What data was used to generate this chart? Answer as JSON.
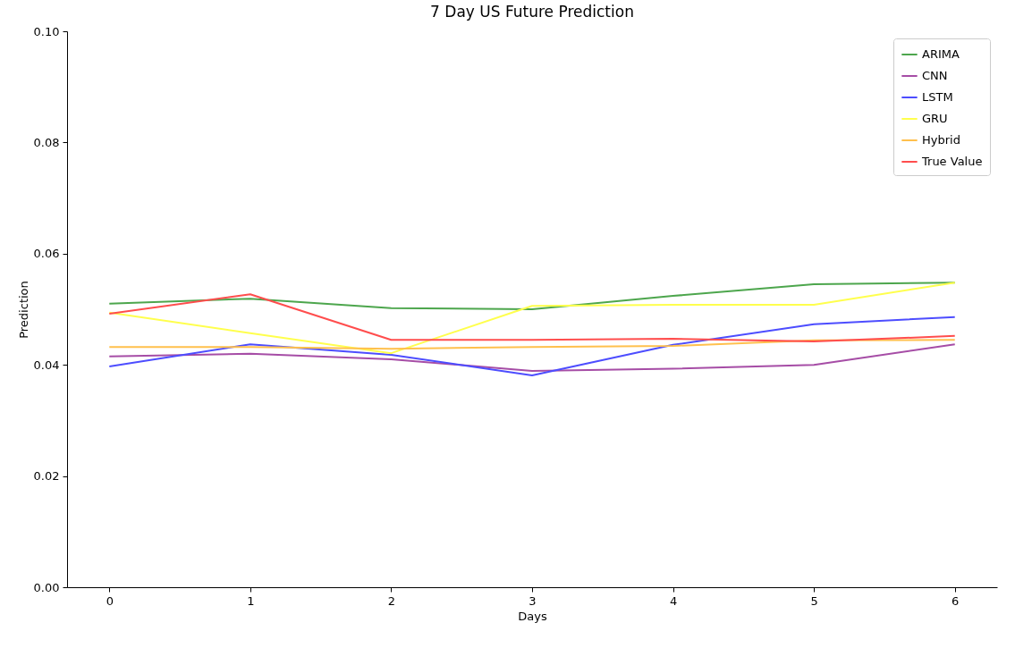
{
  "chart_data": {
    "type": "line",
    "title": "7 Day US Future Prediction",
    "xlabel": "Days",
    "ylabel": "Prediction",
    "x": [
      0,
      1,
      2,
      3,
      4,
      5,
      6
    ],
    "xlim": [
      -0.3,
      6.3
    ],
    "xticks": [
      0,
      1,
      2,
      3,
      4,
      5,
      6
    ],
    "ylim": [
      0,
      0.1
    ],
    "yticks": [
      {
        "value": 0,
        "label": "0.00"
      },
      {
        "value": 0.02,
        "label": "0.02"
      },
      {
        "value": 0.04,
        "label": "0.04"
      },
      {
        "value": 0.06,
        "label": "0.06"
      },
      {
        "value": 0.08,
        "label": "0.08"
      },
      {
        "value": 0.1,
        "label": "0.10"
      }
    ],
    "grid": false,
    "legend": "top right",
    "marker": "none",
    "series": [
      {
        "name": "ARIMA",
        "color": "#4da64d",
        "values": [
          0.051,
          0.0519,
          0.0502,
          0.05,
          0.0524,
          0.0545,
          0.0548
        ]
      },
      {
        "name": "CNN",
        "color": "#a64da6",
        "values": [
          0.0415,
          0.042,
          0.041,
          0.0389,
          0.0393,
          0.04,
          0.0437
        ]
      },
      {
        "name": "LSTM",
        "color": "#4d4dff",
        "values": [
          0.0397,
          0.0437,
          0.0418,
          0.0381,
          0.0436,
          0.0473,
          0.0486
        ]
      },
      {
        "name": "GRU",
        "color": "#ffff4d",
        "values": [
          0.0494,
          0.0457,
          0.0421,
          0.0506,
          0.0508,
          0.0508,
          0.0548
        ]
      },
      {
        "name": "Hybrid",
        "color": "#ffc04d",
        "values": [
          0.0432,
          0.0432,
          0.0429,
          0.0432,
          0.0434,
          0.0444,
          0.0445
        ]
      },
      {
        "name": "True Value",
        "color": "#ff4d4d",
        "values": [
          0.0492,
          0.0527,
          0.0445,
          0.0445,
          0.0447,
          0.0442,
          0.0452
        ]
      }
    ]
  }
}
